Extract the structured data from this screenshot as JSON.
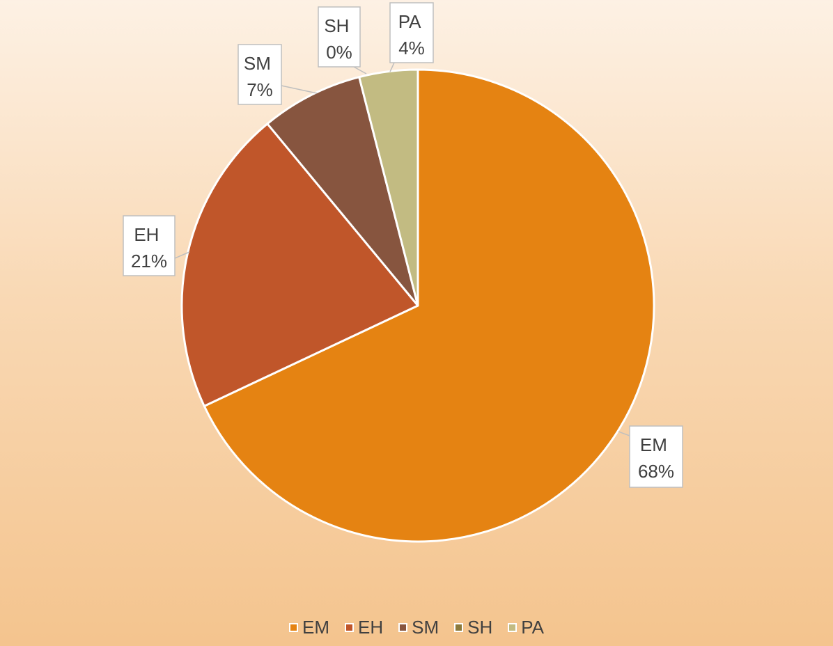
{
  "chart_data": {
    "type": "pie",
    "title": "",
    "categories": [
      "EM",
      "EH",
      "SM",
      "SH",
      "PA"
    ],
    "values": [
      68,
      21,
      7,
      0,
      4
    ],
    "data_labels": [
      {
        "name": "EM",
        "percent": "68%"
      },
      {
        "name": "EH",
        "percent": "21%"
      },
      {
        "name": "SM",
        "percent": "7%"
      },
      {
        "name": "SH",
        "percent": "0%"
      },
      {
        "name": "PA",
        "percent": "4%"
      }
    ],
    "colors": [
      "#e58312",
      "#c0562a",
      "#87553f",
      "#8c7a3c",
      "#c2bb82"
    ],
    "legend": {
      "position": "bottom",
      "entries": [
        "EM",
        "EH",
        "SM",
        "SH",
        "PA"
      ]
    },
    "grid": false
  }
}
